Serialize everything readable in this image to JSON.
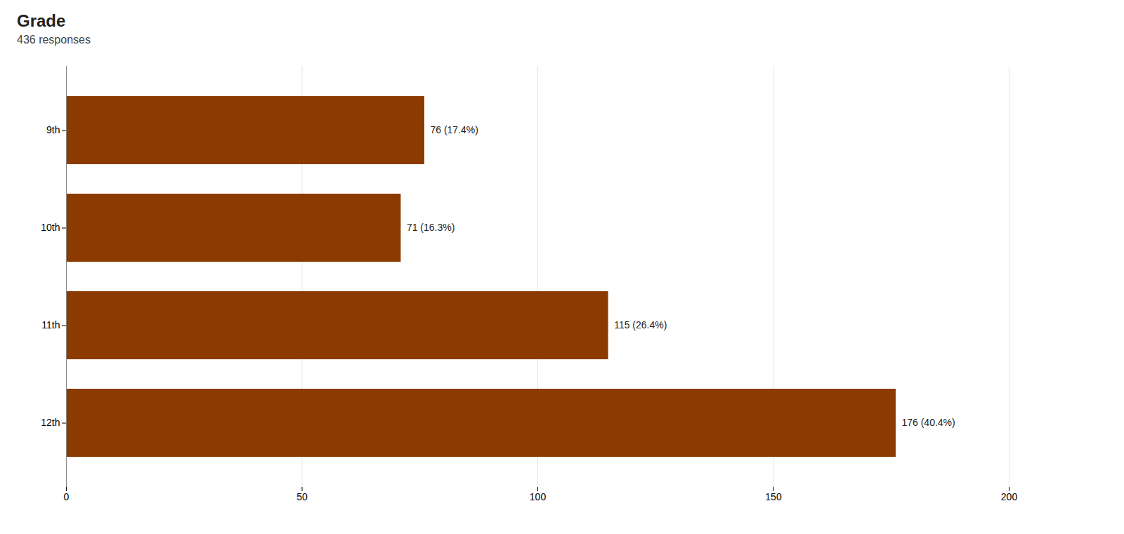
{
  "chart_data": {
    "type": "bar",
    "orientation": "horizontal",
    "title": "Grade",
    "subtitle": "436 responses",
    "categories": [
      "9th",
      "10th",
      "11th",
      "12th"
    ],
    "values": [
      76,
      71,
      115,
      176
    ],
    "value_labels": [
      "76 (17.4%)",
      "71 (16.3%)",
      "115 (26.4%)",
      "176 (40.4%)"
    ],
    "data_labels": true,
    "color": "#8B3A00",
    "xlim": [
      0,
      200
    ],
    "xticks": [
      0,
      50,
      100,
      150,
      200
    ],
    "grid": true
  }
}
